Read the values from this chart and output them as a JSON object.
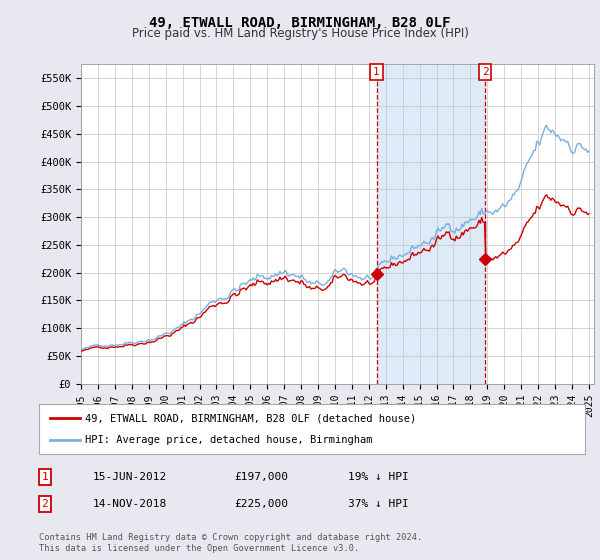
{
  "title": "49, ETWALL ROAD, BIRMINGHAM, B28 0LF",
  "subtitle": "Price paid vs. HM Land Registry's House Price Index (HPI)",
  "ylim": [
    0,
    575000
  ],
  "yticks": [
    0,
    50000,
    100000,
    150000,
    200000,
    250000,
    300000,
    350000,
    400000,
    450000,
    500000,
    550000
  ],
  "ytick_labels": [
    "£0",
    "£50K",
    "£100K",
    "£150K",
    "£200K",
    "£250K",
    "£300K",
    "£350K",
    "£400K",
    "£450K",
    "£500K",
    "£550K"
  ],
  "legend_label_red": "49, ETWALL ROAD, BIRMINGHAM, B28 0LF (detached house)",
  "legend_label_blue": "HPI: Average price, detached house, Birmingham",
  "transaction1_date": "15-JUN-2012",
  "transaction1_price": "£197,000",
  "transaction1_hpi": "19% ↓ HPI",
  "transaction2_date": "14-NOV-2018",
  "transaction2_price": "£225,000",
  "transaction2_hpi": "37% ↓ HPI",
  "footer": "Contains HM Land Registry data © Crown copyright and database right 2024.\nThis data is licensed under the Open Government Licence v3.0.",
  "red_color": "#cc0000",
  "blue_color": "#7aafe0",
  "dashed_color": "#cc0000",
  "bg_color": "#e8e8f0",
  "plot_bg_color": "#ffffff",
  "grid_color": "#cccccc",
  "span_color": "#ddeaf7",
  "transaction1_x": 2012.458,
  "transaction1_y": 197000,
  "transaction2_x": 2018.875,
  "transaction2_y": 225000,
  "xmin": 1995.0,
  "xmax": 2025.3
}
